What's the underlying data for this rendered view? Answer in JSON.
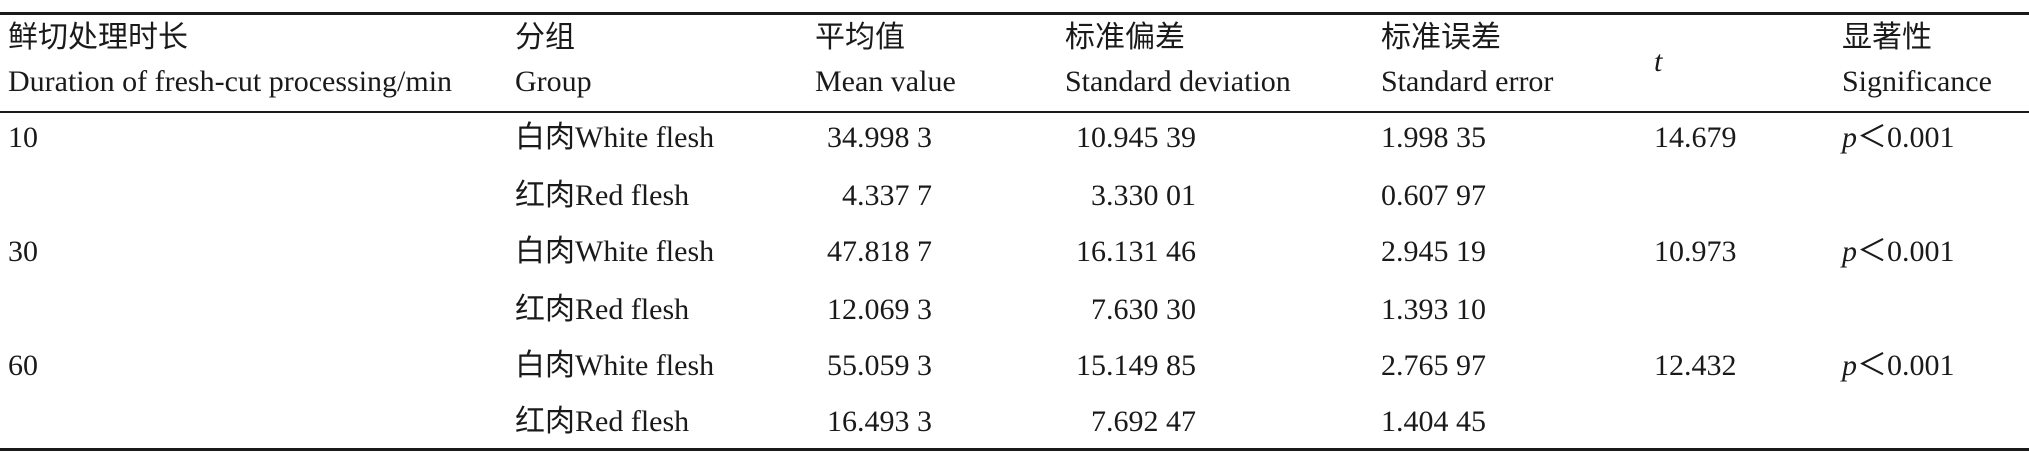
{
  "table": {
    "headers": [
      {
        "zh": "鲜切处理时长",
        "en": "Duration of fresh-cut processing/min"
      },
      {
        "zh": "分组",
        "en": "Group"
      },
      {
        "zh": "平均值",
        "en": "Mean value"
      },
      {
        "zh": "标准偏差",
        "en": "Standard deviation"
      },
      {
        "zh": "标准误差",
        "en": "Standard error"
      },
      {
        "zh": "",
        "en": "t"
      },
      {
        "zh": "显著性",
        "en": "Significance"
      }
    ],
    "rows": [
      {
        "duration": "10",
        "group": "白肉White flesh",
        "mean": "34.998 3",
        "sd": "10.945 39",
        "se": "1.998 35",
        "t": "14.679",
        "sig_p": "p",
        "sig_val": "＜0.001"
      },
      {
        "duration": "",
        "group": "红肉Red flesh",
        "mean": "4.337 7",
        "sd": "3.330 01",
        "se": "0.607 97",
        "t": "",
        "sig_p": "",
        "sig_val": ""
      },
      {
        "duration": "30",
        "group": "白肉White flesh",
        "mean": "47.818 7",
        "sd": "16.131 46",
        "se": "2.945 19",
        "t": "10.973",
        "sig_p": "p",
        "sig_val": "＜0.001"
      },
      {
        "duration": "",
        "group": "红肉Red flesh",
        "mean": "12.069 3",
        "sd": "7.630 30",
        "se": "1.393 10",
        "t": "",
        "sig_p": "",
        "sig_val": ""
      },
      {
        "duration": "60",
        "group": "白肉White flesh",
        "mean": "55.059 3",
        "sd": "15.149 85",
        "se": "2.765 97",
        "t": "12.432",
        "sig_p": "p",
        "sig_val": "＜0.001"
      },
      {
        "duration": "",
        "group": "红肉Red flesh",
        "mean": "16.493 3",
        "sd": "7.692 47",
        "se": "1.404 45",
        "t": "",
        "sig_p": "",
        "sig_val": ""
      }
    ]
  }
}
